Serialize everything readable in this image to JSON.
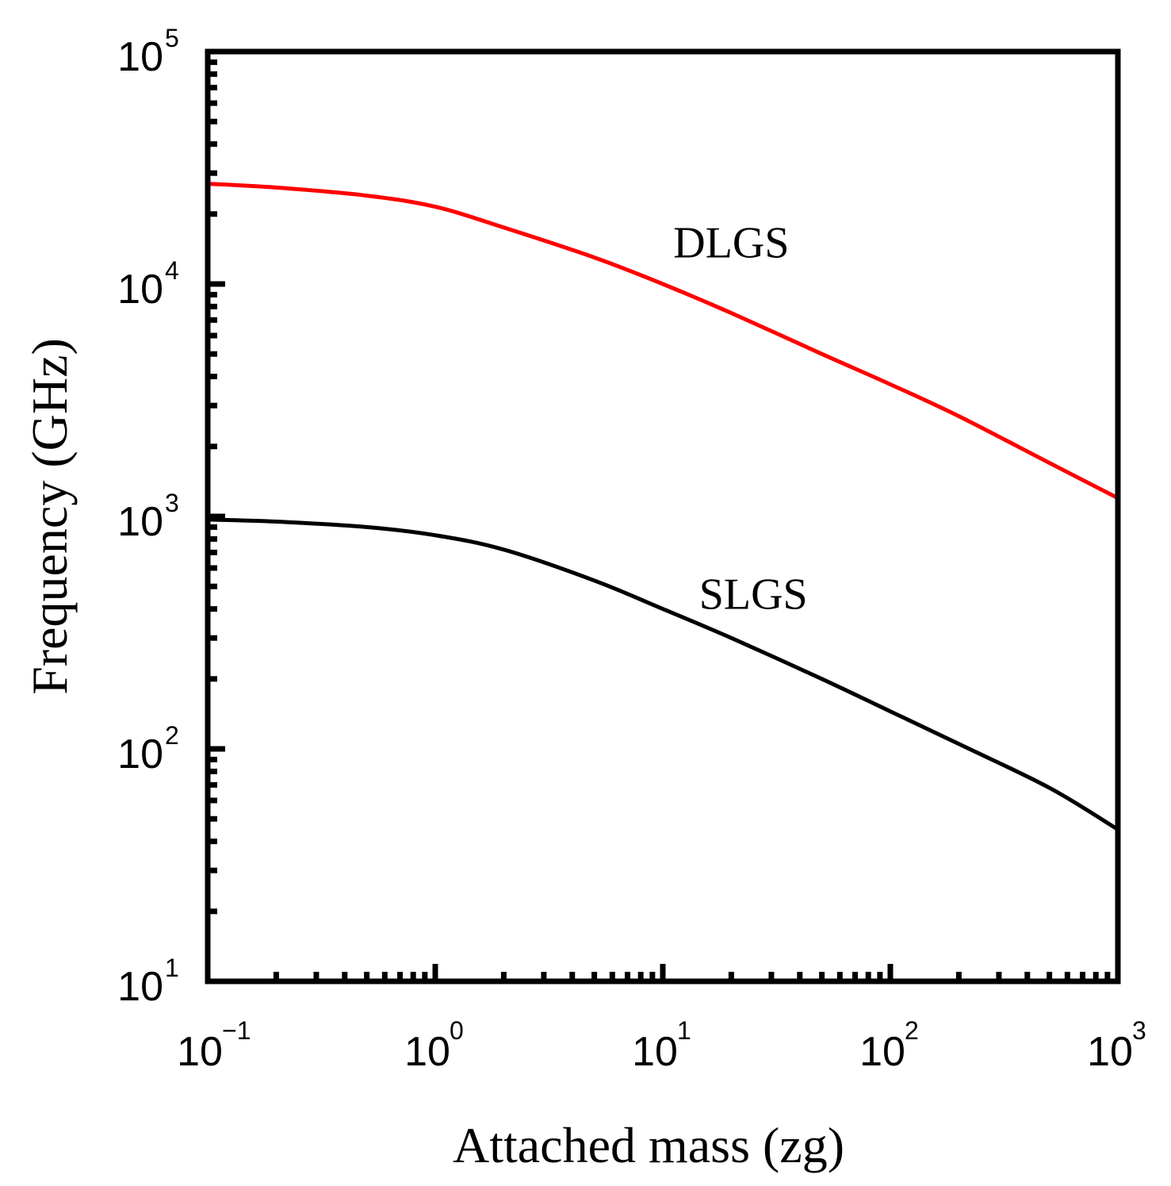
{
  "chart_data": {
    "type": "line",
    "title": "",
    "xlabel": "Attached mass (zg)",
    "ylabel": "Frequency (GHz)",
    "xscale": "log",
    "yscale": "log",
    "xlim": [
      0.1,
      1000
    ],
    "ylim": [
      10,
      100000
    ],
    "grid": false,
    "x_ticks": [
      {
        "base": "10",
        "exp": "−1",
        "value": 0.1
      },
      {
        "base": "10",
        "exp": "0",
        "value": 1
      },
      {
        "base": "10",
        "exp": "1",
        "value": 10
      },
      {
        "base": "10",
        "exp": "2",
        "value": 100
      },
      {
        "base": "10",
        "exp": "3",
        "value": 1000
      }
    ],
    "y_ticks": [
      {
        "base": "10",
        "exp": "1",
        "value": 10
      },
      {
        "base": "10",
        "exp": "2",
        "value": 100
      },
      {
        "base": "10",
        "exp": "3",
        "value": 1000
      },
      {
        "base": "10",
        "exp": "4",
        "value": 10000
      },
      {
        "base": "10",
        "exp": "5",
        "value": 100000
      }
    ],
    "series": [
      {
        "name": "DLGS",
        "color": "#ff0000",
        "label_at": [
          20,
          13000
        ],
        "x": [
          0.1,
          0.2,
          0.5,
          1,
          2,
          5,
          10,
          20,
          50,
          100,
          200,
          500,
          1000
        ],
        "y": [
          27000,
          26000,
          24000,
          21500,
          17500,
          13000,
          10000,
          7500,
          5000,
          3700,
          2700,
          1700,
          1200
        ]
      },
      {
        "name": "SLGS",
        "color": "#000000",
        "label_at": [
          25,
          400
        ],
        "x": [
          0.1,
          0.2,
          0.5,
          1,
          2,
          5,
          10,
          20,
          50,
          100,
          200,
          500,
          1000
        ],
        "y": [
          970,
          950,
          900,
          830,
          720,
          530,
          400,
          300,
          200,
          145,
          105,
          68,
          45
        ]
      }
    ]
  }
}
